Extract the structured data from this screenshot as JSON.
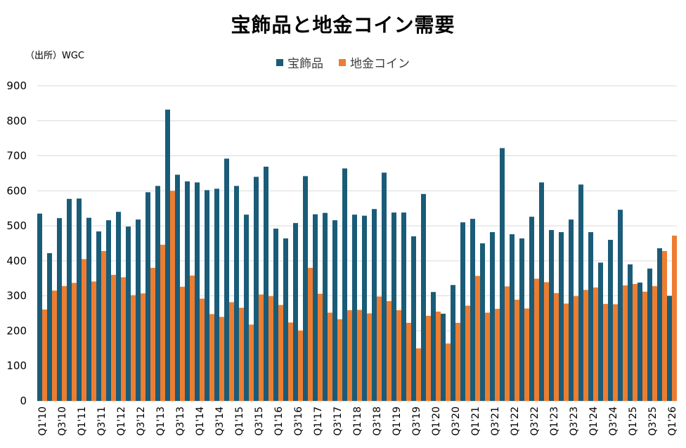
{
  "title": "宝飾品と地金コイン需要",
  "source": "（出所）WGC",
  "chart_data": {
    "type": "bar",
    "title": "宝飾品と地金コイン需要",
    "ylim": [
      0,
      900
    ],
    "yticks": [
      0,
      100,
      200,
      300,
      400,
      500,
      600,
      700,
      800,
      900
    ],
    "grid": true,
    "legend_position": "top-center",
    "categories": [
      "Q1'10",
      "Q2'10",
      "Q3'10",
      "Q4'10",
      "Q1'11",
      "Q2'11",
      "Q3'11",
      "Q4'11",
      "Q1'12",
      "Q2'12",
      "Q3'12",
      "Q4'12",
      "Q1'13",
      "Q2'13",
      "Q3'13",
      "Q4'13",
      "Q1'14",
      "Q2'14",
      "Q3'14",
      "Q4'14",
      "Q1'15",
      "Q2'15",
      "Q3'15",
      "Q4'15",
      "Q1'16",
      "Q2'16",
      "Q3'16",
      "Q4'16",
      "Q1'17",
      "Q2'17",
      "Q3'17",
      "Q4'17",
      "Q1'18",
      "Q2'18",
      "Q3'18",
      "Q4'18",
      "Q1'19",
      "Q2'19",
      "Q3'19",
      "Q4'19",
      "Q1'20",
      "Q2'20",
      "Q3'20",
      "Q4'20",
      "Q1'21",
      "Q2'21",
      "Q3'21",
      "Q4'21",
      "Q1'22",
      "Q2'22",
      "Q3'22",
      "Q4'22",
      "Q1'23",
      "Q2'23",
      "Q3'23",
      "Q4'23",
      "Q1'24",
      "Q2'24",
      "Q3'24",
      "Q4'24",
      "Q1'25",
      "Q2'25",
      "Q3'25",
      "Q4'25",
      "Q1'26"
    ],
    "x_tick_labels": [
      "Q1'10",
      "",
      "Q3'10",
      "",
      "Q1'11",
      "",
      "Q3'11",
      "",
      "Q1'12",
      "",
      "Q3'12",
      "",
      "Q1'13",
      "",
      "Q3'13",
      "",
      "Q1'14",
      "",
      "Q3'14",
      "",
      "Q1'15",
      "",
      "Q3'15",
      "",
      "Q1'16",
      "",
      "Q3'16",
      "",
      "Q1'17",
      "",
      "Q3'17",
      "",
      "Q1'18",
      "",
      "Q3'18",
      "",
      "Q1'19",
      "",
      "Q3'19",
      "",
      "Q1'20",
      "",
      "Q3'20",
      "",
      "Q1'21",
      "",
      "Q3'21",
      "",
      "Q1'22",
      "",
      "Q3'22",
      "",
      "Q1'23",
      "",
      "Q3'23",
      "",
      "Q1'24",
      "",
      "Q3'24",
      "",
      "Q1'25",
      "",
      "Q3'25",
      "",
      "Q1'26"
    ],
    "series": [
      {
        "name": "宝飾品",
        "color": "#1a5c78",
        "values": [
          535,
          422,
          522,
          577,
          578,
          523,
          484,
          516,
          540,
          498,
          518,
          596,
          614,
          832,
          646,
          627,
          624,
          602,
          606,
          692,
          614,
          532,
          640,
          669,
          492,
          464,
          508,
          642,
          533,
          537,
          516,
          664,
          532,
          529,
          548,
          652,
          538,
          538,
          470,
          591,
          311,
          249,
          331,
          510,
          520,
          450,
          482,
          722,
          476,
          464,
          526,
          624,
          488,
          482,
          518,
          618,
          482,
          395,
          460,
          546,
          390,
          338,
          378,
          436,
          300
        ]
      },
      {
        "name": "地金コイン",
        "color": "#ed7d31",
        "values": [
          261,
          315,
          328,
          337,
          405,
          341,
          428,
          360,
          353,
          302,
          307,
          380,
          446,
          600,
          326,
          358,
          292,
          248,
          240,
          282,
          266,
          218,
          304,
          299,
          274,
          224,
          201,
          380,
          306,
          252,
          233,
          259,
          260,
          250,
          298,
          285,
          259,
          223,
          150,
          243,
          255,
          164,
          223,
          272,
          357,
          252,
          263,
          327,
          289,
          264,
          349,
          339,
          308,
          278,
          299,
          317,
          324,
          277,
          276,
          330,
          334,
          312,
          328,
          428,
          472
        ]
      }
    ]
  }
}
